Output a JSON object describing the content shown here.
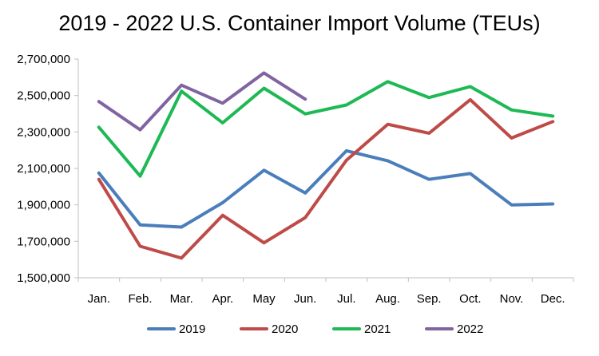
{
  "chart_data": {
    "type": "line",
    "title": "2019 - 2022 U.S. Container Import Volume (TEUs)",
    "xlabel": "",
    "ylabel": "",
    "categories": [
      "Jan.",
      "Feb.",
      "Mar.",
      "Apr.",
      "May",
      "Jun.",
      "Jul.",
      "Aug.",
      "Sep.",
      "Oct.",
      "Nov.",
      "Dec."
    ],
    "ylim": [
      1500000,
      2700000
    ],
    "yticks": [
      1500000,
      1700000,
      1900000,
      2100000,
      2300000,
      2500000,
      2700000
    ],
    "ytick_labels": [
      "1,500,000",
      "1,700,000",
      "1,900,000",
      "2,100,000",
      "2,300,000",
      "2,500,000",
      "2,700,000"
    ],
    "grid": false,
    "legend": "bottom",
    "series": [
      {
        "name": "2019",
        "color": "#4a7ebb",
        "values": [
          2075000,
          1790000,
          1778000,
          1912000,
          2090000,
          1965000,
          2197000,
          2142000,
          2040000,
          2072000,
          1900000,
          1905000
        ]
      },
      {
        "name": "2020",
        "color": "#be4b48",
        "values": [
          2040000,
          1673000,
          1608000,
          1843000,
          1692000,
          1830000,
          2145000,
          2342000,
          2293000,
          2477000,
          2267000,
          2357000
        ]
      },
      {
        "name": "2021",
        "color": "#1db954",
        "values": [
          2326000,
          2058000,
          2524000,
          2350000,
          2540000,
          2399000,
          2448000,
          2576000,
          2489000,
          2549000,
          2421000,
          2387000
        ]
      },
      {
        "name": "2022",
        "color": "#8064a2",
        "values": [
          2467000,
          2312000,
          2557000,
          2458000,
          2624000,
          2480000,
          null,
          null,
          null,
          null,
          null,
          null
        ]
      }
    ]
  }
}
